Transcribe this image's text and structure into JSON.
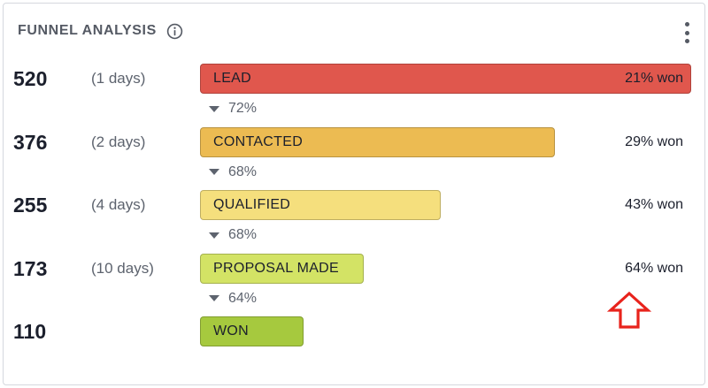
{
  "header": {
    "title": "FUNNEL ANALYSIS",
    "info_icon": "info-icon",
    "menu_icon": "kebab-menu-icon"
  },
  "chart_data": {
    "type": "bar",
    "orientation": "horizontal-funnel",
    "title": "FUNNEL ANALYSIS",
    "max_value": 520,
    "stages": [
      {
        "label": "LEAD",
        "value": 520,
        "count": "520",
        "days": "(1 days)",
        "won": "21% won",
        "color": "#e0574d"
      },
      {
        "label": "CONTACTED",
        "value": 376,
        "count": "376",
        "days": "(2 days)",
        "won": "29% won",
        "color": "#ecbb52"
      },
      {
        "label": "QUALIFIED",
        "value": 255,
        "count": "255",
        "days": "(4 days)",
        "won": "43% won",
        "color": "#f5df7d"
      },
      {
        "label": "PROPOSAL MADE",
        "value": 173,
        "count": "173",
        "days": "(10 days)",
        "won": "64% won",
        "color": "#d3e365"
      },
      {
        "label": "WON",
        "value": 110,
        "count": "110",
        "days": "",
        "won": "",
        "color": "#a6c93e"
      }
    ],
    "conversions": [
      "72%",
      "68%",
      "68%",
      "64%"
    ]
  },
  "annotation": {
    "arrow_icon": "up-arrow-icon",
    "color": "#e8231c"
  }
}
